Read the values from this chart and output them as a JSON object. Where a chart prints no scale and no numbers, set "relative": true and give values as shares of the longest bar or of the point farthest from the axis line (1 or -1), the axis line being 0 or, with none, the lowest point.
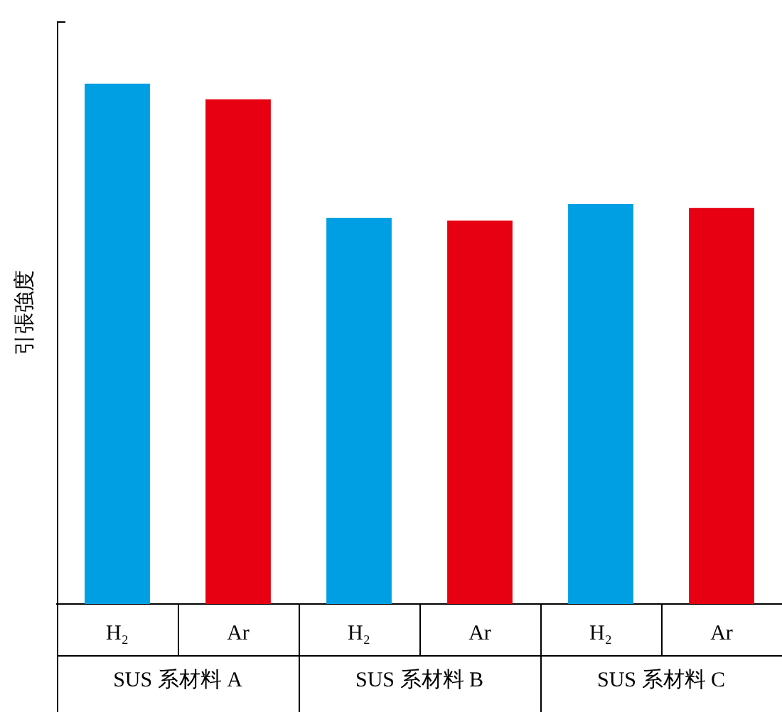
{
  "chart_data": {
    "type": "bar",
    "relative": true,
    "ylabel": "引張強度",
    "categories": [
      "H₂",
      "Ar",
      "H₂",
      "Ar",
      "H₂",
      "Ar"
    ],
    "values": [
      1,
      0.97,
      0.742,
      0.737,
      0.769,
      0.761
    ],
    "colors": [
      "#009fe3",
      "#e60012",
      "#009fe3",
      "#e60012",
      "#009fe3",
      "#e60012"
    ],
    "annotations": [
      "SUS 系材料 A",
      "SUS 系材料 B",
      "SUS 系材料 C"
    ],
    "grid": false,
    "legend": false
  }
}
